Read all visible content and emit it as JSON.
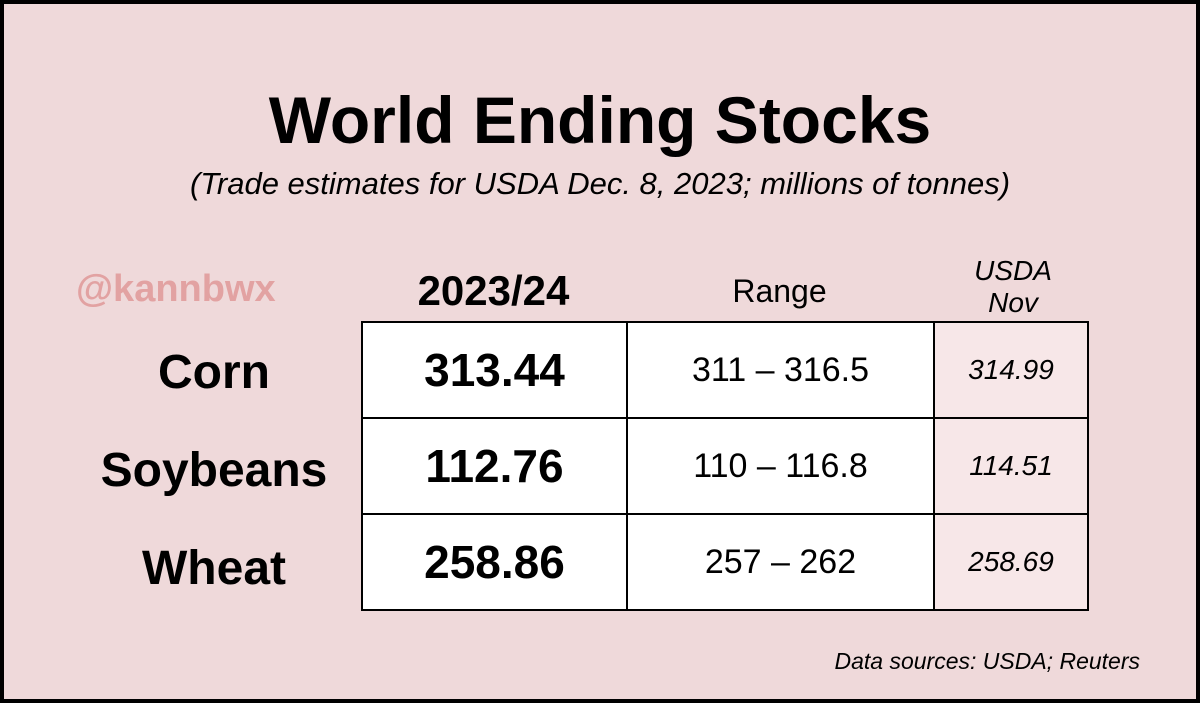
{
  "title": "World Ending Stocks",
  "subtitle": "(Trade estimates for USDA Dec. 8, 2023; millions of tonnes)",
  "watermark": "@kannbwx",
  "table": {
    "columns": [
      "2023/24",
      "Range",
      "USDA Nov"
    ],
    "rows": [
      [
        "Corn",
        "313.44",
        "311 – 316.5",
        "314.99"
      ],
      [
        "Soybeans",
        "112.76",
        "110 – 116.8",
        "114.51"
      ],
      [
        "Wheat",
        "258.86",
        "257 – 262",
        "258.69"
      ]
    ]
  },
  "source": "Data sources: USDA; Reuters"
}
